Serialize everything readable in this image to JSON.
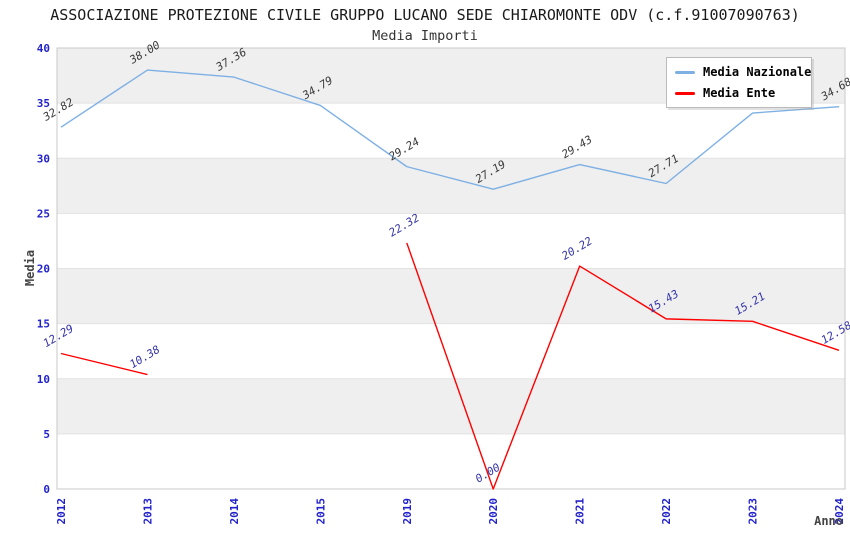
{
  "chart_data": {
    "type": "line",
    "title": "ASSOCIAZIONE PROTEZIONE CIVILE GRUPPO LUCANO SEDE CHIAROMONTE ODV (c.f.91007090763)",
    "subtitle": "Media Importi",
    "xlabel": "Anno",
    "ylabel": "Media",
    "categories": [
      "2012",
      "2013",
      "2014",
      "2015",
      "2019",
      "2020",
      "2021",
      "2022",
      "2023",
      "2024"
    ],
    "ylim": [
      0,
      40
    ],
    "ytick_step": 5,
    "grid": true,
    "legend_position": "top-right",
    "series": [
      {
        "name": "Media Nazionale",
        "color": "#7EB0E4",
        "label_color": "#3A3A3A",
        "values": [
          32.82,
          38.0,
          37.36,
          34.79,
          29.24,
          27.19,
          29.43,
          27.71,
          34.1,
          34.68
        ],
        "labels": [
          "32.82",
          "38.00",
          "37.36",
          "34.79",
          "29.24",
          "27.19",
          "29.43",
          "27.71",
          "34.10",
          "34.68"
        ]
      },
      {
        "name": "Media Ente",
        "color": "#FF0000",
        "label_color": "#3434A8",
        "values": [
          12.29,
          10.38,
          null,
          null,
          22.32,
          0.0,
          20.22,
          15.43,
          15.21,
          12.58
        ],
        "labels": [
          "12.29",
          "10.38",
          "",
          "",
          "22.32",
          "0.00",
          "20.22",
          "15.43",
          "15.21",
          "12.58"
        ]
      }
    ]
  },
  "colors": {
    "tick_label": "#2222CC",
    "band_gray": "#EFEFEF",
    "band_white": "#FFFFFF",
    "gridline": "#E2E2E2",
    "plot_border": "#C8C8C8",
    "axis_title": "#444444",
    "title_text": "#1A1A1A",
    "legend_border": "#BBBBBB",
    "legend_bg": "#FFFFFF",
    "legend_text": "#000000"
  }
}
